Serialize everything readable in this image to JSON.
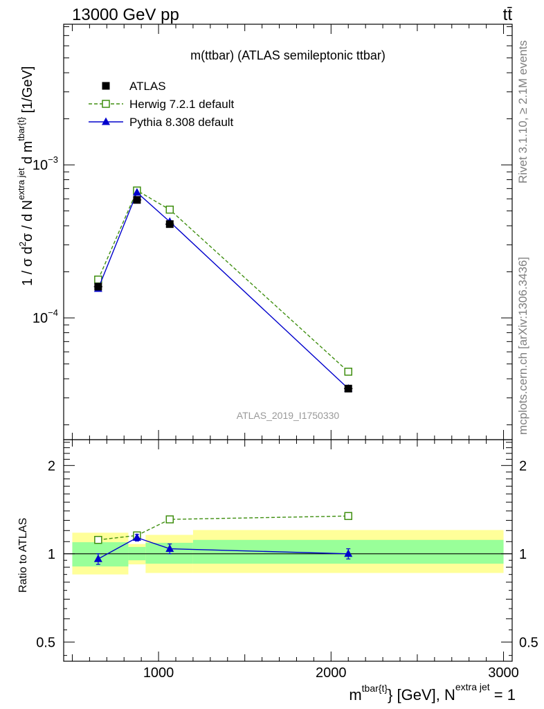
{
  "header": {
    "top_left": "13000 GeV pp",
    "top_right": "tt̄"
  },
  "side_labels": {
    "rivet": "Rivet 3.1.10, ≥ 2.1M events",
    "mcplots": "mcplots.cern.ch [arXiv:1306.3436]"
  },
  "colors": {
    "data": "#000000",
    "herwig": "#3e8e0f",
    "pythia": "#0000cc",
    "band_inner": "#99ff99",
    "band_outer": "#ffff99"
  },
  "chart_data": [
    {
      "type": "scatter",
      "panel": "main",
      "title": "m(ttbar) (ATLAS semileptonic ttbar)",
      "watermark": "ATLAS_2019_I1750330",
      "ylabel": {
        "a": "1 / σ d",
        "b": "σ / d N",
        "c": " d m",
        "d": " [1/GeV]",
        "sup2": "2",
        "sup_extra": "extra jet",
        "sup_tbar": "tbar{t}"
      },
      "y_scale": "log",
      "xlim": [
        450,
        3050
      ],
      "ylim": [
        1.6e-05,
        0.0083
      ],
      "y_ticks": [
        {
          "mant": "10",
          "exp": "−3",
          "value": 0.001
        },
        {
          "mant": "10",
          "exp": "−4",
          "value": 0.0001
        }
      ],
      "legend_position": "top-left",
      "legend": [
        {
          "label": "ATLAS",
          "key": "atlas"
        },
        {
          "label": "Herwig 7.2.1 default",
          "key": "herwig"
        },
        {
          "label": "Pythia 8.308 default",
          "key": "pythia"
        }
      ],
      "series": [
        {
          "key": "atlas",
          "name": "ATLAS",
          "marker": "square-filled",
          "x": [
            650,
            875,
            1065,
            2100
          ],
          "y": [
            0.00016,
            0.00059,
            0.00041,
            3.45e-05
          ],
          "xerr": [
            25,
            25,
            25,
            25
          ]
        },
        {
          "key": "herwig",
          "name": "Herwig 7.2.1 default",
          "marker": "square-open",
          "line": "dashed",
          "x": [
            650,
            875,
            1065,
            2100
          ],
          "y": [
            0.000178,
            0.00068,
            0.00051,
            4.45e-05
          ]
        },
        {
          "key": "pythia",
          "name": "Pythia 8.308 default",
          "marker": "triangle-filled",
          "line": "solid",
          "x": [
            650,
            875,
            1065,
            2100
          ],
          "y": [
            0.000155,
            0.00066,
            0.000425,
            3.45e-05
          ]
        }
      ]
    },
    {
      "type": "scatter",
      "panel": "ratio",
      "ylabel": "Ratio to ATLAS",
      "xlabel": {
        "a": "m",
        "sup_tbar": "tbar{t}",
        "b": "} [GeV], N",
        "sup_extra": "extra jet",
        "c": " = 1"
      },
      "y_scale": "log",
      "xlim": [
        450,
        3050
      ],
      "ylim": [
        0.43,
        2.45
      ],
      "x_ticks": [
        {
          "label": "1000",
          "value": 1000
        },
        {
          "label": "2000",
          "value": 2000
        },
        {
          "label": "3000",
          "value": 3000
        }
      ],
      "y_ticks": [
        {
          "label": "2",
          "value": 2
        },
        {
          "label": "1",
          "value": 1
        },
        {
          "label": "0.5",
          "value": 0.5
        }
      ],
      "bands": [
        {
          "x": [
            500,
            825
          ],
          "inner": [
            0.905,
            1.095
          ],
          "outer": [
            0.85,
            1.18
          ]
        },
        {
          "x": [
            825,
            925
          ],
          "inner": [
            0.95,
            1.055
          ],
          "outer": [
            0.92,
            1.08
          ]
        },
        {
          "x": [
            925,
            1200
          ],
          "inner": [
            0.925,
            1.09
          ],
          "outer": [
            0.86,
            1.16
          ]
        },
        {
          "x": [
            1200,
            3000
          ],
          "inner": [
            0.925,
            1.115
          ],
          "outer": [
            0.86,
            1.205
          ]
        }
      ],
      "series": [
        {
          "key": "herwig",
          "name": "Herwig 7.2.1 default",
          "marker": "square-open",
          "line": "dashed",
          "x": [
            650,
            875,
            1065,
            2100
          ],
          "y": [
            1.115,
            1.155,
            1.31,
            1.345
          ],
          "yerr": [
            0.03,
            0.02,
            0.025,
            0.035
          ]
        },
        {
          "key": "pythia",
          "name": "Pythia 8.308 default",
          "marker": "triangle-filled",
          "line": "solid",
          "x": [
            650,
            875,
            1065,
            2100
          ],
          "y": [
            0.96,
            1.135,
            1.04,
            1.0
          ],
          "yerr": [
            0.04,
            0.03,
            0.04,
            0.04
          ]
        }
      ]
    }
  ]
}
